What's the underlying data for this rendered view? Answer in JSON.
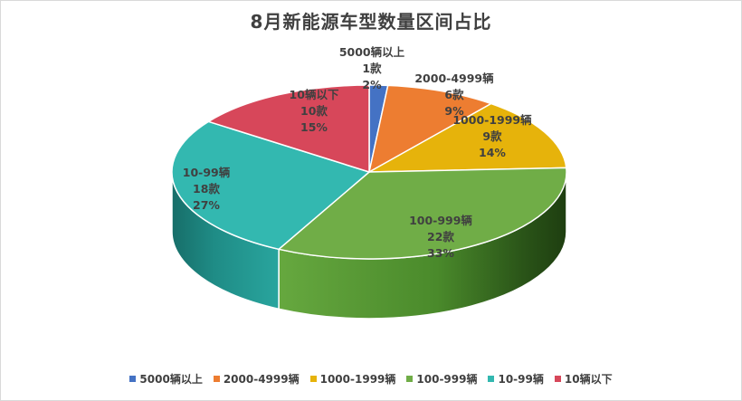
{
  "chart_data": {
    "type": "pie",
    "title": "8月新能源车型数量区间占比",
    "categories": [
      "5000辆以上",
      "2000-4999辆",
      "1000-1999辆",
      "100-999辆",
      "10-99辆",
      "10辆以下"
    ],
    "series": [
      {
        "values": [
          1,
          6,
          9,
          22,
          18,
          10
        ],
        "count_labels": [
          "1款",
          "6款",
          "9款",
          "22款",
          "18款",
          "10款"
        ],
        "percent_labels": [
          "2%",
          "9%",
          "14%",
          "33%",
          "27%",
          "15%"
        ],
        "colors": [
          "#4472c4",
          "#ed7d31",
          "#e6b30b",
          "#70ad47",
          "#33b8b0",
          "#d7475a"
        ]
      }
    ],
    "legend_position": "bottom",
    "style": "3d-pie"
  }
}
